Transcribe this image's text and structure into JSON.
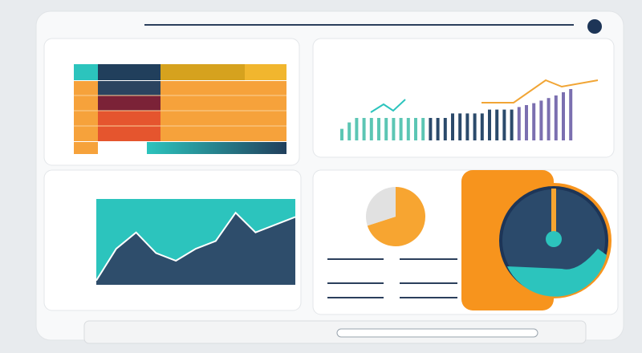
{
  "bar_chart": {
    "series": [
      {
        "color": "#5cc6b4",
        "values": [
          18,
          28,
          35,
          35,
          35,
          35,
          35,
          35,
          35,
          35,
          35,
          35
        ]
      },
      {
        "color": "#2b4a6b",
        "values": [
          35,
          35,
          35,
          42,
          42,
          42,
          42,
          42,
          48,
          48,
          48,
          48
        ]
      },
      {
        "color": "#7b6fb0",
        "values": [
          52,
          55,
          58,
          62,
          66,
          70,
          75,
          80
        ]
      }
    ]
  },
  "area_chart": {
    "color": "#2e4d6b",
    "background": "#2cc4bd",
    "values": [
      5,
      42,
      61,
      37,
      28,
      42,
      51,
      84,
      61,
      70,
      79
    ]
  },
  "pie_chart": {
    "values": [
      70,
      30
    ],
    "colors": [
      "#f7a531",
      "#e1e1e1"
    ]
  }
}
